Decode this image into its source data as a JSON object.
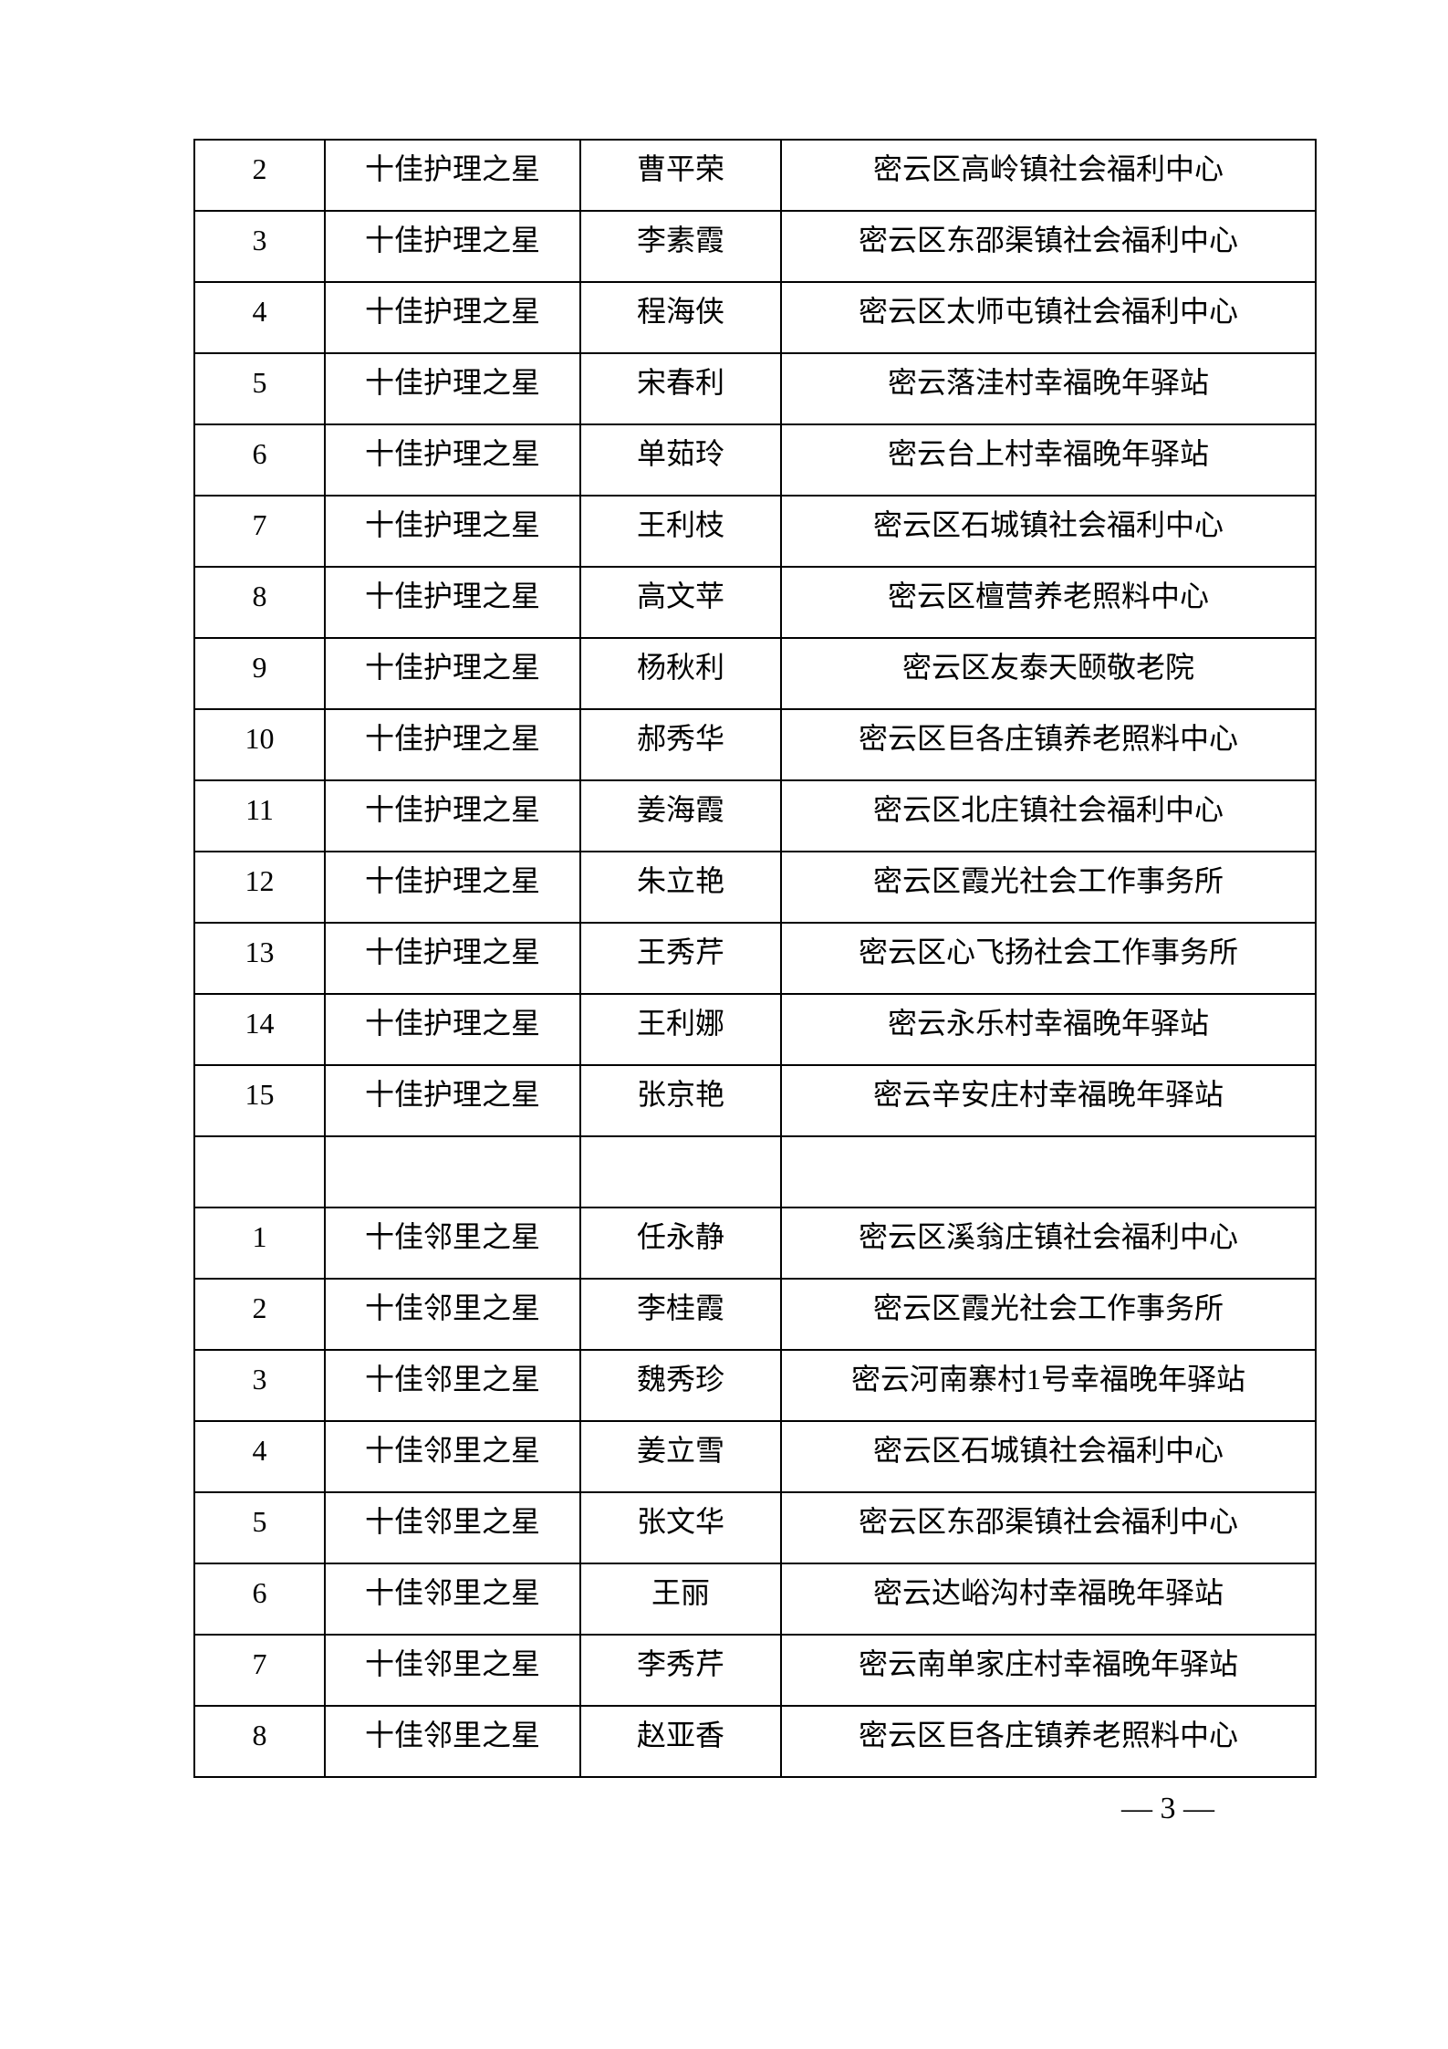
{
  "document": {
    "page_number_label": "— 3 —"
  },
  "table": {
    "rows": [
      {
        "num": "2",
        "award": "十佳护理之星",
        "name": "曹平荣",
        "org": "密云区高岭镇社会福利中心"
      },
      {
        "num": "3",
        "award": "十佳护理之星",
        "name": "李素霞",
        "org": "密云区东邵渠镇社会福利中心"
      },
      {
        "num": "4",
        "award": "十佳护理之星",
        "name": "程海侠",
        "org": "密云区太师屯镇社会福利中心"
      },
      {
        "num": "5",
        "award": "十佳护理之星",
        "name": "宋春利",
        "org": "密云落洼村幸福晚年驿站"
      },
      {
        "num": "6",
        "award": "十佳护理之星",
        "name": "单茹玲",
        "org": "密云台上村幸福晚年驿站"
      },
      {
        "num": "7",
        "award": "十佳护理之星",
        "name": "王利枝",
        "org": "密云区石城镇社会福利中心"
      },
      {
        "num": "8",
        "award": "十佳护理之星",
        "name": "高文苹",
        "org": "密云区檀营养老照料中心"
      },
      {
        "num": "9",
        "award": "十佳护理之星",
        "name": "杨秋利",
        "org": "密云区友泰天颐敬老院"
      },
      {
        "num": "10",
        "award": "十佳护理之星",
        "name": "郝秀华",
        "org": "密云区巨各庄镇养老照料中心"
      },
      {
        "num": "11",
        "award": "十佳护理之星",
        "name": "姜海霞",
        "org": "密云区北庄镇社会福利中心"
      },
      {
        "num": "12",
        "award": "十佳护理之星",
        "name": "朱立艳",
        "org": "密云区霞光社会工作事务所"
      },
      {
        "num": "13",
        "award": "十佳护理之星",
        "name": "王秀芹",
        "org": "密云区心飞扬社会工作事务所"
      },
      {
        "num": "14",
        "award": "十佳护理之星",
        "name": "王利娜",
        "org": "密云永乐村幸福晚年驿站"
      },
      {
        "num": "15",
        "award": "十佳护理之星",
        "name": "张京艳",
        "org": "密云辛安庄村幸福晚年驿站"
      },
      {
        "num": "",
        "award": "",
        "name": "",
        "org": ""
      },
      {
        "num": "1",
        "award": "十佳邻里之星",
        "name": "任永静",
        "org": "密云区溪翁庄镇社会福利中心"
      },
      {
        "num": "2",
        "award": "十佳邻里之星",
        "name": "李桂霞",
        "org": "密云区霞光社会工作事务所"
      },
      {
        "num": "3",
        "award": "十佳邻里之星",
        "name": "魏秀珍",
        "org": "密云河南寨村1号幸福晚年驿站"
      },
      {
        "num": "4",
        "award": "十佳邻里之星",
        "name": "姜立雪",
        "org": "密云区石城镇社会福利中心"
      },
      {
        "num": "5",
        "award": "十佳邻里之星",
        "name": "张文华",
        "org": "密云区东邵渠镇社会福利中心"
      },
      {
        "num": "6",
        "award": "十佳邻里之星",
        "name": "王丽",
        "org": "密云达峪沟村幸福晚年驿站"
      },
      {
        "num": "7",
        "award": "十佳邻里之星",
        "name": "李秀芹",
        "org": "密云南单家庄村幸福晚年驿站"
      },
      {
        "num": "8",
        "award": "十佳邻里之星",
        "name": "赵亚香",
        "org": "密云区巨各庄镇养老照料中心"
      }
    ]
  }
}
